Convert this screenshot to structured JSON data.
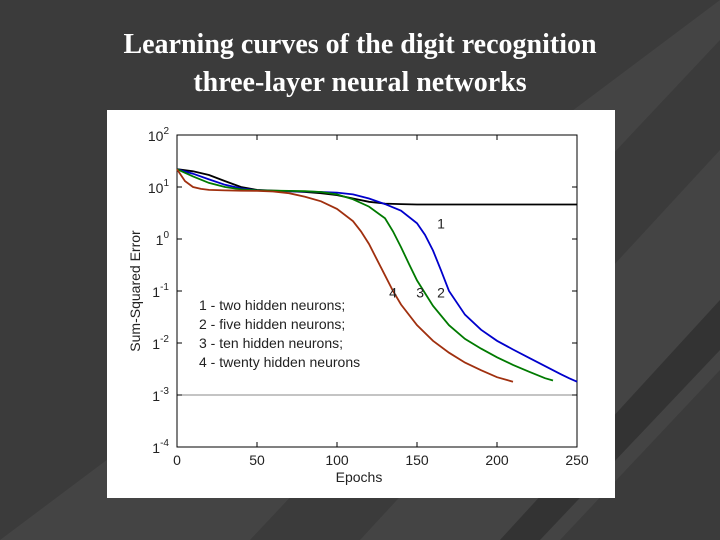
{
  "slide": {
    "title_line1": "Learning curves of the digit recognition",
    "title_line2": "three-layer neural networks",
    "background_color": "#3b3b3b",
    "title_color": "#ffffff"
  },
  "chart_data": {
    "type": "line",
    "title": "",
    "xlabel": "Epochs",
    "ylabel": "Sum-Squared Error",
    "xlim": [
      0,
      250
    ],
    "ylim": [
      0.0001,
      100
    ],
    "yscale": "log",
    "grid": false,
    "x_ticks": [
      0,
      50,
      100,
      150,
      200,
      250
    ],
    "y_ticks": [
      {
        "value": 100,
        "base": "10",
        "exp": "2"
      },
      {
        "value": 10,
        "base": "10",
        "exp": "1"
      },
      {
        "value": 1,
        "base": "1",
        "exp": "0"
      },
      {
        "value": 0.1,
        "base": "1",
        "exp": "-1"
      },
      {
        "value": 0.01,
        "base": "1",
        "exp": "-2"
      },
      {
        "value": 0.001,
        "base": "1",
        "exp": "-3"
      },
      {
        "value": 0.0001,
        "base": "1",
        "exp": "-4"
      }
    ],
    "reference_line": {
      "y": 0.001
    },
    "legend": {
      "placement": "lower-left",
      "entries": [
        {
          "key": "1",
          "text": "two hidden neurons;"
        },
        {
          "key": "2",
          "text": "five hidden neurons;"
        },
        {
          "key": "3",
          "text": "ten hidden neurons;"
        },
        {
          "key": "4",
          "text": "twenty hidden neurons"
        }
      ]
    },
    "series": [
      {
        "id": "1",
        "color": "#000000",
        "label_at": {
          "x": 165,
          "y": 2.0
        },
        "x": [
          0,
          10,
          20,
          30,
          40,
          50,
          60,
          70,
          80,
          90,
          100,
          110,
          120,
          130,
          140,
          150,
          160,
          250
        ],
        "y": [
          22,
          20,
          17,
          13,
          10,
          8.8,
          8.5,
          8.3,
          8.0,
          7.6,
          7.0,
          6.0,
          5.2,
          4.8,
          4.7,
          4.6,
          4.6,
          4.6
        ]
      },
      {
        "id": "2",
        "color": "#0000cc",
        "label_at": {
          "x": 165,
          "y": 0.0933
        },
        "x": [
          0,
          10,
          20,
          30,
          40,
          50,
          60,
          70,
          80,
          90,
          100,
          110,
          120,
          130,
          140,
          150,
          155,
          160,
          165,
          170,
          180,
          190,
          200,
          210,
          220,
          230,
          240,
          245,
          250
        ],
        "y": [
          22,
          18,
          14,
          11,
          9.4,
          8.6,
          8.4,
          8.3,
          8.2,
          8.0,
          7.8,
          7.2,
          6.0,
          4.7,
          3.5,
          2.0,
          1.2,
          0.6,
          0.25,
          0.1,
          0.035,
          0.018,
          0.011,
          0.0075,
          0.0052,
          0.0036,
          0.0025,
          0.0021,
          0.0018
        ]
      },
      {
        "id": "3",
        "color": "#007a00",
        "label_at": {
          "x": 152,
          "y": 0.0933
        },
        "x": [
          0,
          10,
          20,
          30,
          40,
          50,
          60,
          70,
          80,
          90,
          100,
          110,
          120,
          130,
          135,
          140,
          145,
          150,
          160,
          170,
          180,
          190,
          200,
          210,
          220,
          230,
          235
        ],
        "y": [
          22,
          16,
          12,
          10,
          9.0,
          8.6,
          8.5,
          8.4,
          8.3,
          8.0,
          7.2,
          5.8,
          4.2,
          2.5,
          1.4,
          0.7,
          0.33,
          0.16,
          0.052,
          0.022,
          0.012,
          0.0078,
          0.0053,
          0.0038,
          0.0028,
          0.0021,
          0.0019
        ]
      },
      {
        "id": "4",
        "color": "#a0300f",
        "label_at": {
          "x": 135,
          "y": 0.0933
        },
        "x": [
          0,
          5,
          10,
          15,
          20,
          30,
          40,
          50,
          60,
          70,
          80,
          90,
          100,
          110,
          115,
          120,
          125,
          130,
          135,
          140,
          150,
          160,
          170,
          180,
          190,
          200,
          210
        ],
        "y": [
          22,
          13,
          10,
          9.2,
          8.8,
          8.6,
          8.5,
          8.4,
          8.2,
          7.6,
          6.5,
          5.3,
          3.8,
          2.2,
          1.4,
          0.8,
          0.4,
          0.2,
          0.1,
          0.055,
          0.022,
          0.011,
          0.0065,
          0.0042,
          0.003,
          0.0022,
          0.0018
        ]
      }
    ]
  }
}
